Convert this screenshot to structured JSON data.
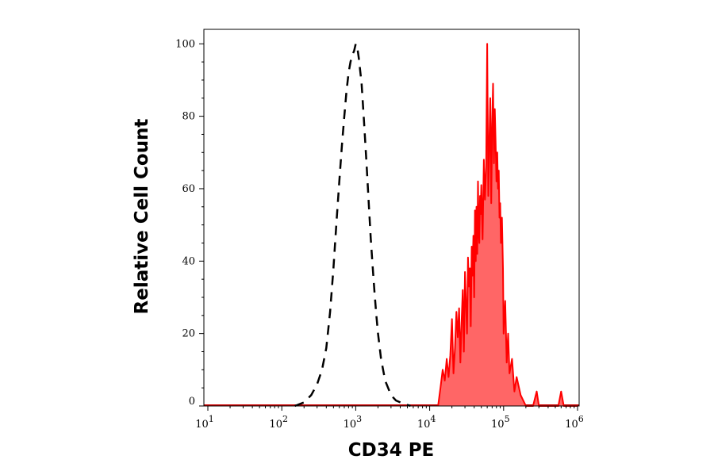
{
  "chart_data": {
    "type": "area",
    "title": "",
    "xlabel": "CD34 PE",
    "ylabel": "Relative Cell Count",
    "x_scale": "log",
    "xlim": [
      10,
      1000000
    ],
    "ylim": [
      0,
      104
    ],
    "x_ticks": [
      {
        "value": 10,
        "base": "10",
        "exp": "1"
      },
      {
        "value": 100,
        "base": "10",
        "exp": "2"
      },
      {
        "value": 1000,
        "base": "10",
        "exp": "3"
      },
      {
        "value": 10000,
        "base": "10",
        "exp": "4"
      },
      {
        "value": 100000,
        "base": "10",
        "exp": "5"
      },
      {
        "value": 1000000,
        "base": "10",
        "exp": "6"
      }
    ],
    "y_ticks": [
      {
        "value": 0,
        "label": "0"
      },
      {
        "value": 20,
        "label": "20"
      },
      {
        "value": 40,
        "label": "40"
      },
      {
        "value": 60,
        "label": "60"
      },
      {
        "value": 80,
        "label": "80"
      },
      {
        "value": 100,
        "label": "100"
      }
    ],
    "grid": false,
    "legend": "none",
    "series": [
      {
        "style": "dashed-line",
        "color": "#000000",
        "x": [
          150,
          200,
          250,
          300,
          350,
          400,
          450,
          500,
          550,
          600,
          650,
          700,
          750,
          800,
          850,
          900,
          950,
          1000,
          1050,
          1100,
          1200,
          1300,
          1400,
          1500,
          1600,
          1700,
          1800,
          1900,
          2000,
          2200,
          2500,
          3000,
          3500,
          4000,
          4500,
          5000,
          5500
        ],
        "y": [
          0,
          1,
          3,
          6,
          10,
          16,
          26,
          38,
          51,
          62,
          72,
          80,
          87,
          92,
          95,
          97,
          98,
          100,
          99,
          96,
          89,
          78,
          67,
          56,
          46,
          38,
          31,
          25,
          20,
          13,
          7,
          3,
          1.5,
          1,
          0.5,
          0.3,
          0
        ]
      },
      {
        "style": "filled",
        "color": "#ff0000",
        "fill": "#ff6666",
        "x": [
          13000,
          14000,
          15000,
          16000,
          17000,
          18000,
          19000,
          20000,
          21000,
          22000,
          23000,
          24000,
          25000,
          26000,
          27000,
          28000,
          29000,
          30000,
          31000,
          32000,
          33000,
          34000,
          35000,
          36000,
          37000,
          38000,
          39000,
          40000,
          41000,
          42000,
          43000,
          44000,
          45000,
          46000,
          47000,
          48000,
          49000,
          50000,
          52000,
          54000,
          56000,
          58000,
          60000,
          62000,
          64000,
          66000,
          68000,
          70000,
          72000,
          74000,
          76000,
          78000,
          80000,
          82000,
          84000,
          86000,
          88000,
          90000,
          92000,
          95000,
          98000,
          100000,
          105000,
          110000,
          115000,
          120000,
          130000,
          140000,
          150000,
          170000,
          200000,
          250000,
          280000,
          300000,
          320000,
          400000,
          550000,
          600000,
          650000,
          1000000
        ],
        "y": [
          0,
          5,
          10,
          7,
          13,
          8,
          14,
          24,
          9,
          16,
          26,
          19,
          27,
          12,
          23,
          32,
          15,
          37,
          28,
          20,
          41,
          33,
          38,
          22,
          44,
          36,
          47,
          30,
          54,
          40,
          55,
          42,
          62,
          48,
          45,
          58,
          53,
          61,
          46,
          68,
          57,
          66,
          100,
          58,
          72,
          85,
          56,
          78,
          89,
          67,
          82,
          73,
          62,
          70,
          60,
          65,
          52,
          56,
          45,
          52,
          38,
          20,
          29,
          12,
          20,
          9,
          13,
          4,
          8,
          3,
          0,
          0,
          4,
          0,
          0,
          0,
          0,
          4,
          0,
          0
        ]
      }
    ]
  }
}
